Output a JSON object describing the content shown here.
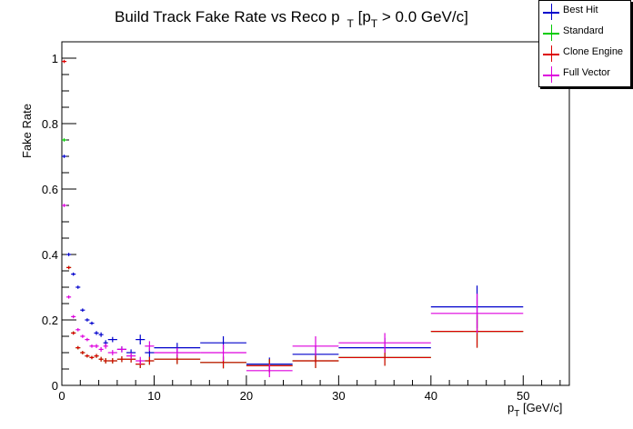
{
  "chart_data": {
    "type": "scatter",
    "title_main": "Build Track Fake Rate vs Reco p",
    "title_sub": "T",
    "title_rest": " [p",
    "title_sub2": "T",
    "title_end": " > 0.0 GeV/c]",
    "ylabel": "Fake Rate",
    "xlabel_main": "p",
    "xlabel_sub": "T",
    "xlabel_rest": " [GeV/c]",
    "xlim": [
      0,
      55
    ],
    "ylim": [
      0,
      1.05
    ],
    "x_ticks": [
      0,
      10,
      20,
      30,
      40,
      50
    ],
    "x_tick_labels": [
      "0",
      "10",
      "20",
      "30",
      "40",
      "50"
    ],
    "y_ticks": [
      0,
      0.2,
      0.4,
      0.6,
      0.8,
      1
    ],
    "y_tick_labels": [
      "0",
      "0.2",
      "0.4",
      "0.6",
      "0.8",
      "1"
    ],
    "legend": {
      "placement": "top-right"
    },
    "series": [
      {
        "name": "Best Hit",
        "color": "#0000cc",
        "points": [
          {
            "x": 0.25,
            "xe": 0.25,
            "y": 0.7,
            "ye": 0.005
          },
          {
            "x": 0.75,
            "xe": 0.25,
            "y": 0.4,
            "ye": 0.005
          },
          {
            "x": 1.25,
            "xe": 0.25,
            "y": 0.34,
            "ye": 0.005
          },
          {
            "x": 1.75,
            "xe": 0.25,
            "y": 0.3,
            "ye": 0.005
          },
          {
            "x": 2.25,
            "xe": 0.25,
            "y": 0.23,
            "ye": 0.005
          },
          {
            "x": 2.75,
            "xe": 0.25,
            "y": 0.2,
            "ye": 0.005
          },
          {
            "x": 3.25,
            "xe": 0.25,
            "y": 0.19,
            "ye": 0.005
          },
          {
            "x": 3.75,
            "xe": 0.25,
            "y": 0.16,
            "ye": 0.006
          },
          {
            "x": 4.25,
            "xe": 0.25,
            "y": 0.155,
            "ye": 0.007
          },
          {
            "x": 4.75,
            "xe": 0.25,
            "y": 0.13,
            "ye": 0.008
          },
          {
            "x": 5.5,
            "xe": 0.5,
            "y": 0.14,
            "ye": 0.008
          },
          {
            "x": 6.5,
            "xe": 0.5,
            "y": 0.11,
            "ye": 0.009
          },
          {
            "x": 7.5,
            "xe": 0.5,
            "y": 0.1,
            "ye": 0.01
          },
          {
            "x": 8.5,
            "xe": 0.5,
            "y": 0.14,
            "ye": 0.015
          },
          {
            "x": 9.5,
            "xe": 0.5,
            "y": 0.1,
            "ye": 0.015
          },
          {
            "x": 12.5,
            "xe": 2.5,
            "y": 0.115,
            "ye": 0.015
          },
          {
            "x": 17.5,
            "xe": 2.5,
            "y": 0.13,
            "ye": 0.02
          },
          {
            "x": 22.5,
            "xe": 2.5,
            "y": 0.065,
            "ye": 0.02
          },
          {
            "x": 27.5,
            "xe": 2.5,
            "y": 0.095,
            "ye": 0.025
          },
          {
            "x": 35,
            "xe": 5,
            "y": 0.115,
            "ye": 0.03
          },
          {
            "x": 45,
            "xe": 5,
            "y": 0.24,
            "ye": 0.065
          }
        ]
      },
      {
        "name": "Standard",
        "color": "#00cc00",
        "points": [
          {
            "x": 0.25,
            "xe": 0.25,
            "y": 0.75,
            "ye": 0.005
          },
          {
            "x": 0.75,
            "xe": 0.25,
            "y": 0.36,
            "ye": 0.005
          },
          {
            "x": 1.25,
            "xe": 0.25,
            "y": 0.16,
            "ye": 0.005
          },
          {
            "x": 1.75,
            "xe": 0.25,
            "y": 0.115,
            "ye": 0.005
          },
          {
            "x": 2.25,
            "xe": 0.25,
            "y": 0.1,
            "ye": 0.005
          },
          {
            "x": 2.75,
            "xe": 0.25,
            "y": 0.09,
            "ye": 0.005
          },
          {
            "x": 3.25,
            "xe": 0.25,
            "y": 0.085,
            "ye": 0.005
          },
          {
            "x": 3.75,
            "xe": 0.25,
            "y": 0.09,
            "ye": 0.006
          },
          {
            "x": 4.25,
            "xe": 0.25,
            "y": 0.08,
            "ye": 0.007
          },
          {
            "x": 4.75,
            "xe": 0.25,
            "y": 0.075,
            "ye": 0.008
          },
          {
            "x": 5.5,
            "xe": 0.5,
            "y": 0.075,
            "ye": 0.008
          },
          {
            "x": 6.5,
            "xe": 0.5,
            "y": 0.08,
            "ye": 0.009
          },
          {
            "x": 7.5,
            "xe": 0.5,
            "y": 0.08,
            "ye": 0.01
          },
          {
            "x": 8.5,
            "xe": 0.5,
            "y": 0.065,
            "ye": 0.012
          },
          {
            "x": 9.5,
            "xe": 0.5,
            "y": 0.075,
            "ye": 0.012
          },
          {
            "x": 12.5,
            "xe": 2.5,
            "y": 0.08,
            "ye": 0.015
          },
          {
            "x": 17.5,
            "xe": 2.5,
            "y": 0.07,
            "ye": 0.018
          },
          {
            "x": 22.5,
            "xe": 2.5,
            "y": 0.06,
            "ye": 0.02
          },
          {
            "x": 27.5,
            "xe": 2.5,
            "y": 0.075,
            "ye": 0.022
          },
          {
            "x": 35,
            "xe": 5,
            "y": 0.085,
            "ye": 0.025
          },
          {
            "x": 45,
            "xe": 5,
            "y": 0.165,
            "ye": 0.05
          }
        ]
      },
      {
        "name": "Clone Engine",
        "color": "#dd0000",
        "points": [
          {
            "x": 0.25,
            "xe": 0.25,
            "y": 0.99,
            "ye": 0.005
          },
          {
            "x": 0.75,
            "xe": 0.25,
            "y": 0.36,
            "ye": 0.005
          },
          {
            "x": 1.25,
            "xe": 0.25,
            "y": 0.16,
            "ye": 0.005
          },
          {
            "x": 1.75,
            "xe": 0.25,
            "y": 0.115,
            "ye": 0.005
          },
          {
            "x": 2.25,
            "xe": 0.25,
            "y": 0.1,
            "ye": 0.005
          },
          {
            "x": 2.75,
            "xe": 0.25,
            "y": 0.09,
            "ye": 0.005
          },
          {
            "x": 3.25,
            "xe": 0.25,
            "y": 0.085,
            "ye": 0.005
          },
          {
            "x": 3.75,
            "xe": 0.25,
            "y": 0.09,
            "ye": 0.006
          },
          {
            "x": 4.25,
            "xe": 0.25,
            "y": 0.08,
            "ye": 0.007
          },
          {
            "x": 4.75,
            "xe": 0.25,
            "y": 0.075,
            "ye": 0.008
          },
          {
            "x": 5.5,
            "xe": 0.5,
            "y": 0.075,
            "ye": 0.008
          },
          {
            "x": 6.5,
            "xe": 0.5,
            "y": 0.08,
            "ye": 0.009
          },
          {
            "x": 7.5,
            "xe": 0.5,
            "y": 0.08,
            "ye": 0.01
          },
          {
            "x": 8.5,
            "xe": 0.5,
            "y": 0.065,
            "ye": 0.012
          },
          {
            "x": 9.5,
            "xe": 0.5,
            "y": 0.075,
            "ye": 0.012
          },
          {
            "x": 12.5,
            "xe": 2.5,
            "y": 0.08,
            "ye": 0.015
          },
          {
            "x": 17.5,
            "xe": 2.5,
            "y": 0.07,
            "ye": 0.018
          },
          {
            "x": 22.5,
            "xe": 2.5,
            "y": 0.06,
            "ye": 0.02
          },
          {
            "x": 27.5,
            "xe": 2.5,
            "y": 0.075,
            "ye": 0.022
          },
          {
            "x": 35,
            "xe": 5,
            "y": 0.085,
            "ye": 0.025
          },
          {
            "x": 45,
            "xe": 5,
            "y": 0.165,
            "ye": 0.05
          }
        ]
      },
      {
        "name": "Full Vector",
        "color": "#dd00dd",
        "points": [
          {
            "x": 0.25,
            "xe": 0.25,
            "y": 0.55,
            "ye": 0.005
          },
          {
            "x": 0.75,
            "xe": 0.25,
            "y": 0.27,
            "ye": 0.005
          },
          {
            "x": 1.25,
            "xe": 0.25,
            "y": 0.21,
            "ye": 0.005
          },
          {
            "x": 1.75,
            "xe": 0.25,
            "y": 0.17,
            "ye": 0.005
          },
          {
            "x": 2.25,
            "xe": 0.25,
            "y": 0.15,
            "ye": 0.005
          },
          {
            "x": 2.75,
            "xe": 0.25,
            "y": 0.14,
            "ye": 0.005
          },
          {
            "x": 3.25,
            "xe": 0.25,
            "y": 0.12,
            "ye": 0.005
          },
          {
            "x": 3.75,
            "xe": 0.25,
            "y": 0.12,
            "ye": 0.006
          },
          {
            "x": 4.25,
            "xe": 0.25,
            "y": 0.11,
            "ye": 0.007
          },
          {
            "x": 4.75,
            "xe": 0.25,
            "y": 0.12,
            "ye": 0.008
          },
          {
            "x": 5.5,
            "xe": 0.5,
            "y": 0.1,
            "ye": 0.008
          },
          {
            "x": 6.5,
            "xe": 0.5,
            "y": 0.11,
            "ye": 0.009
          },
          {
            "x": 7.5,
            "xe": 0.5,
            "y": 0.09,
            "ye": 0.01
          },
          {
            "x": 8.5,
            "xe": 0.5,
            "y": 0.075,
            "ye": 0.012
          },
          {
            "x": 9.5,
            "xe": 0.5,
            "y": 0.12,
            "ye": 0.015
          },
          {
            "x": 12.5,
            "xe": 2.5,
            "y": 0.1,
            "ye": 0.015
          },
          {
            "x": 17.5,
            "xe": 2.5,
            "y": 0.1,
            "ye": 0.025
          },
          {
            "x": 22.5,
            "xe": 2.5,
            "y": 0.045,
            "ye": 0.02
          },
          {
            "x": 27.5,
            "xe": 2.5,
            "y": 0.12,
            "ye": 0.03
          },
          {
            "x": 35,
            "xe": 5,
            "y": 0.13,
            "ye": 0.03
          },
          {
            "x": 45,
            "xe": 5,
            "y": 0.22,
            "ye": 0.06
          }
        ]
      }
    ]
  }
}
